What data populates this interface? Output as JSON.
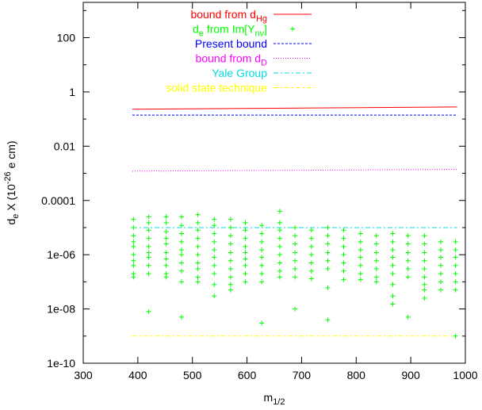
{
  "chart_data": {
    "type": "scatter",
    "xlabel": "m_{1/2}",
    "ylabel": "d_e  X (10^{-26} e cm)",
    "xlim": [
      300,
      1000
    ],
    "ylim": [
      1e-10,
      2000
    ],
    "yscale": "log",
    "x_ticks": [
      "300",
      "400",
      "500",
      "600",
      "700",
      "800",
      "900",
      "1000"
    ],
    "y_ticks": [
      "1e-10",
      "1e-08",
      "1e-06",
      "0.0001",
      "0.01",
      "1",
      "100"
    ],
    "grid": false,
    "legend_position": "top-right",
    "legend": [
      {
        "text": "bound from d",
        "sub": "Hg",
        "after": "",
        "color": "#ff0000",
        "style": "solid"
      },
      {
        "text": "d",
        "sub": "e",
        "after": " from Im[Y",
        "sub2": "nν",
        "after2": "]",
        "color": "#00ff00",
        "style": "points"
      },
      {
        "text": "Present bound",
        "sub": "",
        "after": "",
        "color": "#0000ff",
        "style": "dashed"
      },
      {
        "text": "bound from d",
        "sub": "D",
        "after": "",
        "color": "#ff00ff",
        "style": "dotted"
      },
      {
        "text": "Yale Group",
        "sub": "",
        "after": "",
        "color": "#00dddd",
        "style": "dashdot"
      },
      {
        "text": "solid state technique",
        "sub": "",
        "after": "",
        "color": "#ffff00",
        "style": "dashdot"
      }
    ],
    "lines": [
      {
        "name": "bound from d_Hg",
        "color": "#ff0000",
        "x": [
          390,
          985
        ],
        "y": [
          0.23,
          0.28
        ]
      },
      {
        "name": "Present bound",
        "color": "#0000ff",
        "x": [
          390,
          985
        ],
        "y": [
          0.14,
          0.14
        ]
      },
      {
        "name": "bound from d_D",
        "color": "#ff00ff",
        "x": [
          390,
          985
        ],
        "y": [
          0.0012,
          0.0014
        ]
      },
      {
        "name": "Yale Group",
        "color": "#00dddd",
        "x": [
          390,
          985
        ],
        "y": [
          1e-05,
          1e-05
        ]
      },
      {
        "name": "solid state technique",
        "color": "#ffff00",
        "x": [
          390,
          985
        ],
        "y": [
          1e-09,
          1e-09
        ]
      }
    ],
    "points_color": "#00ff00",
    "columns": [
      {
        "x": 392,
        "y": [
          2e-05,
          1e-05,
          5e-06,
          3e-06,
          2e-06,
          1e-06,
          6e-07,
          4e-07,
          2e-07,
          1.5e-07
        ]
      },
      {
        "x": 420,
        "y": [
          2.5e-05,
          1.5e-05,
          8e-06,
          4e-06,
          2e-06,
          1.2e-06,
          8e-07,
          4e-07,
          2e-07,
          8e-09
        ]
      },
      {
        "x": 452,
        "y": [
          2.5e-05,
          1.5e-05,
          7e-06,
          4e-06,
          2.5e-06,
          1.2e-06,
          7e-07,
          4e-07,
          2e-07,
          1.5e-07
        ]
      },
      {
        "x": 480,
        "y": [
          2.5e-05,
          1.2e-05,
          6e-06,
          3e-06,
          1.5e-06,
          1e-06,
          5e-07,
          2.5e-07,
          1e-07,
          5e-09
        ]
      },
      {
        "x": 510,
        "y": [
          3e-05,
          1.5e-05,
          8e-06,
          4e-06,
          2e-06,
          1e-06,
          5e-07,
          3e-07,
          1.5e-07,
          1e-07
        ]
      },
      {
        "x": 540,
        "y": [
          2e-05,
          1.2e-05,
          6e-06,
          3e-06,
          1.5e-06,
          8e-07,
          4e-07,
          2e-07,
          8e-08,
          3e-08
        ]
      },
      {
        "x": 570,
        "y": [
          2e-05,
          1e-05,
          5e-06,
          2.5e-06,
          1.2e-06,
          6e-07,
          3e-07,
          1.5e-07,
          8e-08,
          5e-08
        ]
      },
      {
        "x": 597,
        "y": [
          1.5e-05,
          8e-06,
          4e-06,
          2e-06,
          1.2e-06,
          7e-07,
          4e-07,
          2e-07,
          1e-07
        ]
      },
      {
        "x": 627,
        "y": [
          1.2e-05,
          6e-06,
          3e-06,
          1.5e-06,
          8e-07,
          4e-07,
          2e-07,
          1e-07,
          3e-09
        ]
      },
      {
        "x": 660,
        "y": [
          4e-05,
          1.5e-05,
          8e-06,
          4e-06,
          2e-06,
          1e-06,
          5e-07,
          2.5e-07,
          1.5e-07
        ]
      },
      {
        "x": 688,
        "y": [
          1e-05,
          5e-06,
          2.5e-06,
          1.2e-06,
          6e-07,
          3e-07,
          1.5e-07,
          1e-08
        ]
      },
      {
        "x": 718,
        "y": [
          8e-06,
          4e-06,
          2e-06,
          1e-06,
          5e-07,
          2.5e-07,
          1.3e-07
        ]
      },
      {
        "x": 748,
        "y": [
          1e-05,
          5e-06,
          2.5e-06,
          1.2e-06,
          6e-07,
          3e-07,
          6e-08,
          4e-09
        ]
      },
      {
        "x": 777,
        "y": [
          8e-06,
          4e-06,
          2e-06,
          1e-06,
          5e-07,
          2.5e-07,
          1.2e-07
        ]
      },
      {
        "x": 808,
        "y": [
          6e-06,
          3e-06,
          1.5e-06,
          8e-07,
          4e-07,
          2e-07,
          1.2e-07
        ]
      },
      {
        "x": 837,
        "y": [
          5e-06,
          2.5e-06,
          1.2e-06,
          6e-07,
          3e-07,
          1.5e-07,
          1e-07
        ]
      },
      {
        "x": 867,
        "y": [
          6e-06,
          3e-06,
          1.5e-06,
          8e-07,
          4e-07,
          2e-07,
          8e-08,
          3e-08,
          1.5e-08
        ]
      },
      {
        "x": 895,
        "y": [
          5e-06,
          2.5e-06,
          1.2e-06,
          6e-07,
          3e-07,
          1.5e-07,
          5e-09
        ]
      },
      {
        "x": 925,
        "y": [
          5e-06,
          2.5e-06,
          1.2e-06,
          6e-07,
          3e-07,
          1.5e-07,
          8e-08,
          5e-08,
          2.5e-08
        ]
      },
      {
        "x": 955,
        "y": [
          3e-06,
          1.5e-06,
          8e-07,
          4e-07,
          2e-07,
          1e-07,
          5e-08
        ]
      },
      {
        "x": 982,
        "y": [
          3e-06,
          1.5e-06,
          8e-07,
          4e-07,
          2e-07,
          1e-07,
          5e-08,
          1e-09
        ]
      }
    ]
  }
}
